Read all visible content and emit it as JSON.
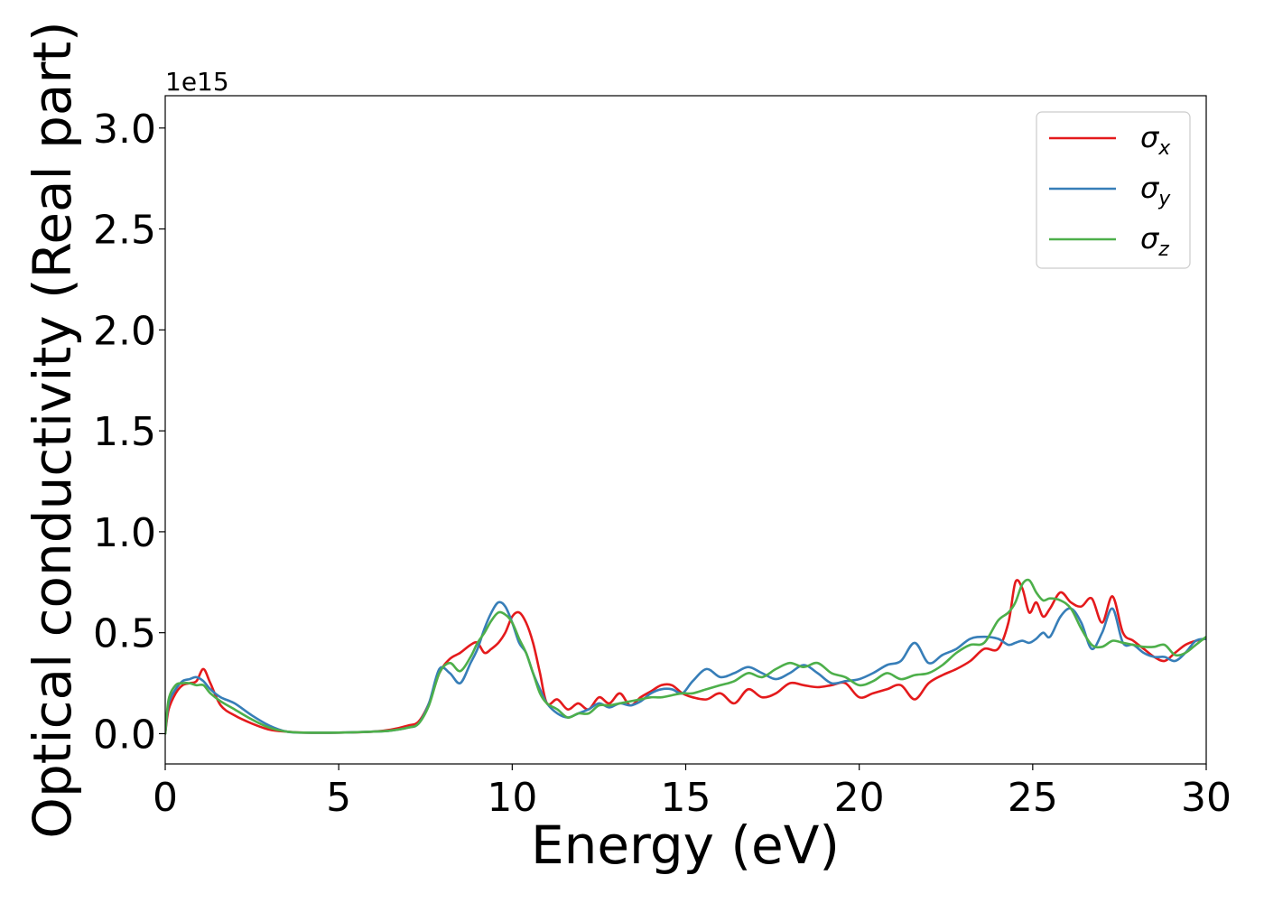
{
  "chart_data": {
    "type": "line",
    "title": "",
    "xlabel": "Energy (eV)",
    "ylabel": "Optical conductivity (Real part)",
    "y_offset_label": "1e15",
    "y_scale_factor": 1000000000000000.0,
    "xlim": [
      0,
      30
    ],
    "ylim": [
      -0.15,
      3.16
    ],
    "xticks": [
      0,
      5,
      10,
      15,
      20,
      25,
      30
    ],
    "xtick_labels": [
      "0",
      "5",
      "10",
      "15",
      "20",
      "25",
      "30"
    ],
    "yticks": [
      0.0,
      0.5,
      1.0,
      1.5,
      2.0,
      2.5,
      3.0
    ],
    "ytick_labels": [
      "0.0",
      "0.5",
      "1.0",
      "1.5",
      "2.0",
      "2.5",
      "3.0"
    ],
    "grid": false,
    "legend_position": "top-right",
    "series": [
      {
        "name": "σ_x",
        "legend_symbol": "σ",
        "legend_sub": "x",
        "color": "#e41a1c",
        "x": [
          0,
          0.1,
          0.3,
          0.5,
          0.7,
          0.9,
          1.1,
          1.3,
          1.6,
          2.0,
          2.5,
          3.0,
          3.5,
          4,
          5,
          6,
          6.5,
          7,
          7.3,
          7.6,
          7.9,
          8.2,
          8.5,
          8.8,
          9.0,
          9.2,
          9.4,
          9.6,
          9.8,
          10.0,
          10.2,
          10.4,
          10.6,
          10.8,
          11.0,
          11.3,
          11.6,
          11.9,
          12.2,
          12.5,
          12.8,
          13.1,
          13.4,
          13.7,
          14.0,
          14.3,
          14.6,
          14.9,
          15.2,
          15.6,
          16.0,
          16.4,
          16.8,
          17.2,
          17.6,
          18.0,
          18.4,
          18.8,
          19.2,
          19.6,
          20.0,
          20.4,
          20.8,
          21.2,
          21.6,
          22.0,
          22.4,
          22.8,
          23.2,
          23.6,
          24.0,
          24.3,
          24.5,
          24.7,
          24.9,
          25.1,
          25.3,
          25.5,
          25.8,
          26.1,
          26.4,
          26.7,
          27.0,
          27.3,
          27.6,
          27.9,
          28.2,
          28.5,
          28.8,
          29.1,
          29.4,
          29.7,
          30.0
        ],
        "values": [
          0.0,
          0.12,
          0.2,
          0.24,
          0.25,
          0.26,
          0.32,
          0.25,
          0.14,
          0.09,
          0.05,
          0.02,
          0.01,
          0.005,
          0.005,
          0.01,
          0.02,
          0.04,
          0.06,
          0.15,
          0.3,
          0.37,
          0.4,
          0.44,
          0.45,
          0.4,
          0.42,
          0.45,
          0.5,
          0.58,
          0.6,
          0.55,
          0.45,
          0.3,
          0.15,
          0.17,
          0.12,
          0.15,
          0.12,
          0.18,
          0.15,
          0.2,
          0.14,
          0.18,
          0.21,
          0.24,
          0.24,
          0.2,
          0.18,
          0.17,
          0.2,
          0.15,
          0.22,
          0.18,
          0.2,
          0.25,
          0.24,
          0.23,
          0.24,
          0.25,
          0.18,
          0.2,
          0.22,
          0.24,
          0.17,
          0.25,
          0.29,
          0.32,
          0.36,
          0.42,
          0.42,
          0.55,
          0.75,
          0.72,
          0.6,
          0.65,
          0.58,
          0.62,
          0.7,
          0.65,
          0.63,
          0.67,
          0.55,
          0.68,
          0.5,
          0.46,
          0.42,
          0.38,
          0.36,
          0.4,
          0.44,
          0.46,
          0.47
        ]
      },
      {
        "name": "σ_y",
        "legend_symbol": "σ",
        "legend_sub": "y",
        "color": "#377eb8",
        "x": [
          0,
          0.1,
          0.3,
          0.5,
          0.7,
          0.9,
          1.1,
          1.3,
          1.6,
          2.0,
          2.5,
          3.0,
          3.5,
          4,
          5,
          6,
          6.5,
          7,
          7.3,
          7.6,
          7.9,
          8.2,
          8.5,
          8.8,
          9.0,
          9.2,
          9.4,
          9.6,
          9.8,
          10.0,
          10.2,
          10.4,
          10.6,
          10.8,
          11.0,
          11.3,
          11.6,
          11.9,
          12.2,
          12.5,
          12.8,
          13.1,
          13.4,
          13.7,
          14.0,
          14.3,
          14.6,
          14.9,
          15.2,
          15.6,
          16.0,
          16.4,
          16.8,
          17.2,
          17.6,
          18.0,
          18.4,
          18.8,
          19.2,
          19.6,
          20.0,
          20.4,
          20.8,
          21.2,
          21.6,
          22.0,
          22.4,
          22.8,
          23.2,
          23.6,
          24.0,
          24.3,
          24.5,
          24.7,
          24.9,
          25.1,
          25.3,
          25.5,
          25.8,
          26.1,
          26.4,
          26.7,
          27.0,
          27.3,
          27.6,
          27.9,
          28.2,
          28.5,
          28.8,
          29.1,
          29.4,
          29.7,
          30.0
        ],
        "values": [
          0.0,
          0.15,
          0.22,
          0.26,
          0.27,
          0.28,
          0.26,
          0.22,
          0.18,
          0.15,
          0.09,
          0.04,
          0.01,
          0.005,
          0.005,
          0.01,
          0.015,
          0.03,
          0.05,
          0.15,
          0.32,
          0.3,
          0.25,
          0.35,
          0.42,
          0.52,
          0.6,
          0.65,
          0.63,
          0.55,
          0.45,
          0.4,
          0.3,
          0.22,
          0.15,
          0.1,
          0.08,
          0.1,
          0.12,
          0.15,
          0.13,
          0.15,
          0.14,
          0.16,
          0.2,
          0.22,
          0.22,
          0.2,
          0.26,
          0.32,
          0.28,
          0.3,
          0.33,
          0.3,
          0.27,
          0.3,
          0.34,
          0.3,
          0.25,
          0.26,
          0.27,
          0.3,
          0.34,
          0.36,
          0.45,
          0.35,
          0.39,
          0.42,
          0.47,
          0.48,
          0.47,
          0.44,
          0.45,
          0.46,
          0.45,
          0.47,
          0.5,
          0.48,
          0.58,
          0.62,
          0.55,
          0.42,
          0.5,
          0.62,
          0.45,
          0.44,
          0.4,
          0.38,
          0.38,
          0.36,
          0.4,
          0.46,
          0.47
        ]
      },
      {
        "name": "σ_z",
        "legend_symbol": "σ",
        "legend_sub": "z",
        "color": "#4daf4a",
        "x": [
          0,
          0.1,
          0.3,
          0.5,
          0.7,
          0.9,
          1.1,
          1.3,
          1.6,
          2.0,
          2.5,
          3.0,
          3.5,
          4,
          5,
          6,
          6.5,
          7,
          7.3,
          7.6,
          7.9,
          8.2,
          8.5,
          8.8,
          9.0,
          9.2,
          9.4,
          9.6,
          9.8,
          10.0,
          10.2,
          10.4,
          10.6,
          10.8,
          11.0,
          11.3,
          11.6,
          11.9,
          12.2,
          12.5,
          12.8,
          13.1,
          13.4,
          13.7,
          14.0,
          14.3,
          14.6,
          14.9,
          15.2,
          15.6,
          16.0,
          16.4,
          16.8,
          17.2,
          17.6,
          18.0,
          18.4,
          18.8,
          19.2,
          19.6,
          20.0,
          20.4,
          20.8,
          21.2,
          21.6,
          22.0,
          22.4,
          22.8,
          23.2,
          23.6,
          24.0,
          24.3,
          24.5,
          24.7,
          24.9,
          25.1,
          25.3,
          25.5,
          25.8,
          26.1,
          26.4,
          26.7,
          27.0,
          27.3,
          27.6,
          27.9,
          28.2,
          28.5,
          28.8,
          29.1,
          29.4,
          29.7,
          30.0
        ],
        "values": [
          0.0,
          0.17,
          0.24,
          0.25,
          0.25,
          0.24,
          0.24,
          0.2,
          0.16,
          0.12,
          0.07,
          0.03,
          0.01,
          0.005,
          0.005,
          0.01,
          0.015,
          0.03,
          0.05,
          0.14,
          0.3,
          0.35,
          0.31,
          0.38,
          0.45,
          0.5,
          0.56,
          0.6,
          0.59,
          0.55,
          0.47,
          0.4,
          0.3,
          0.2,
          0.15,
          0.12,
          0.08,
          0.1,
          0.1,
          0.14,
          0.14,
          0.15,
          0.16,
          0.17,
          0.18,
          0.18,
          0.19,
          0.2,
          0.2,
          0.22,
          0.24,
          0.26,
          0.3,
          0.28,
          0.32,
          0.35,
          0.33,
          0.35,
          0.3,
          0.28,
          0.24,
          0.26,
          0.3,
          0.27,
          0.29,
          0.3,
          0.34,
          0.4,
          0.44,
          0.45,
          0.56,
          0.6,
          0.65,
          0.74,
          0.76,
          0.7,
          0.66,
          0.67,
          0.66,
          0.62,
          0.52,
          0.44,
          0.43,
          0.46,
          0.45,
          0.44,
          0.43,
          0.43,
          0.44,
          0.39,
          0.4,
          0.44,
          0.48
        ]
      }
    ]
  }
}
